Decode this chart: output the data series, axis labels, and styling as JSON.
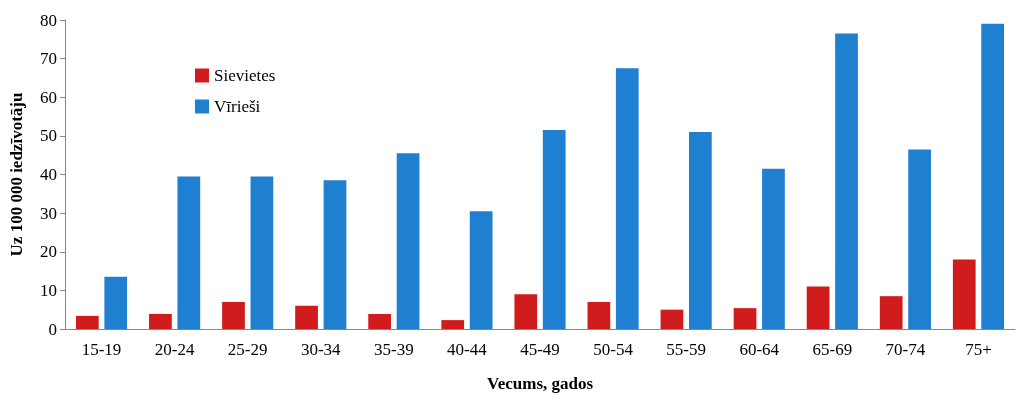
{
  "chart_data": {
    "type": "bar",
    "xlabel": "Vecums, gados",
    "ylabel": "Uz 100 000 iedzīvotāju",
    "categories": [
      "15-19",
      "20-24",
      "25-29",
      "30-34",
      "35-39",
      "40-44",
      "45-49",
      "50-54",
      "55-59",
      "60-64",
      "65-69",
      "70-74",
      "75+"
    ],
    "series": [
      {
        "name": "Sievietes",
        "color": "#d01c1c",
        "values": [
          3.4,
          3.9,
          7,
          6,
          3.9,
          2.3,
          9,
          7,
          5,
          5.4,
          11,
          8.5,
          18
        ]
      },
      {
        "name": "Vīrieši",
        "color": "#1f7fd0",
        "values": [
          13.5,
          39.5,
          39.5,
          38.5,
          45.5,
          30.5,
          51.5,
          67.5,
          51,
          41.5,
          76.5,
          46.5,
          79
        ]
      }
    ],
    "ylim": [
      0,
      80
    ],
    "yticks": [
      0,
      10,
      20,
      30,
      40,
      50,
      60,
      70,
      80
    ],
    "grid": false,
    "legend": "top left"
  }
}
